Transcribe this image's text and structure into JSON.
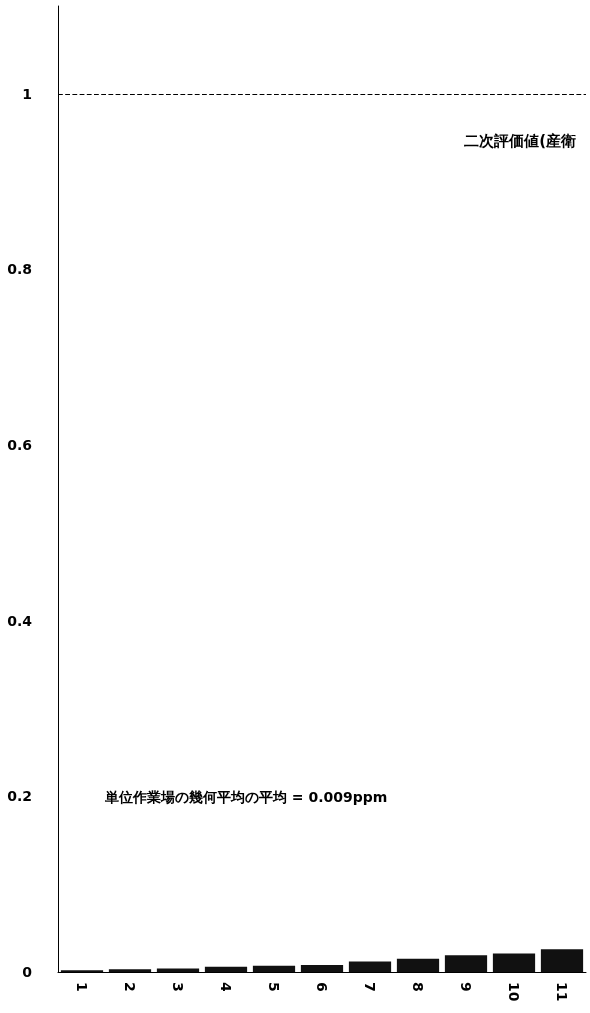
{
  "chart_data": {
    "type": "bar",
    "categories": [
      "1",
      "2",
      "3",
      "4",
      "5",
      "6",
      "7",
      "8",
      "9",
      "10",
      "11"
    ],
    "values": [
      0.002,
      0.003,
      0.004,
      0.006,
      0.007,
      0.008,
      0.012,
      0.015,
      0.019,
      0.021,
      0.026
    ],
    "color": "#111111",
    "ylim": [
      0,
      1.1
    ],
    "yticks": [
      0,
      0.2,
      0.4,
      0.6,
      0.8,
      1
    ],
    "ref_lines": [
      {
        "axis": "y",
        "value": 1,
        "label": "二次評価値(産衛",
        "color": "#000000",
        "line_style": "dashed"
      }
    ],
    "annotations": [
      "単位作業場の幾何平均の平均 = 0.009ppm"
    ]
  }
}
